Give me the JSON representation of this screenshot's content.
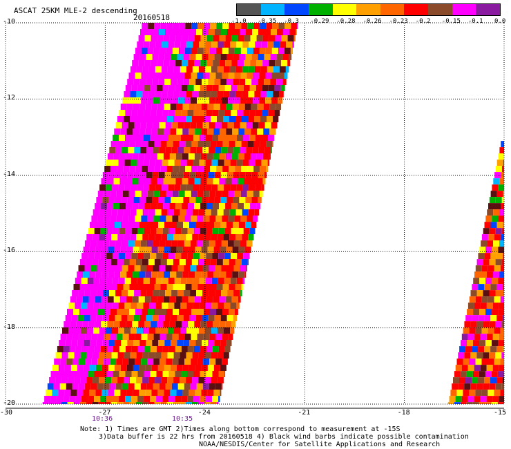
{
  "header": {
    "title": "ASCAT 25KM MLE-2 descending",
    "date": "20160518"
  },
  "legend": {
    "labels": [
      "-1.0",
      "-0.35",
      "-0.3",
      "-0.29",
      "-0.28",
      "-0.26",
      "-0.23",
      "-0.2",
      "-0.15",
      "-0.1",
      "0.0"
    ],
    "colors": [
      "#555555",
      "#00b4ff",
      "#0046ff",
      "#00b000",
      "#ffff00",
      "#ffa000",
      "#ff6600",
      "#ff0000",
      "#8b4a2a",
      "#ff00ff",
      "#8a1aa0"
    ]
  },
  "axes": {
    "x_ticks": [
      "-30",
      "-27",
      "-24",
      "-21",
      "-18",
      "-15"
    ],
    "y_ticks": [
      "-10",
      "-12",
      "-14",
      "-16",
      "-18",
      "-20"
    ],
    "times": [
      "10:36",
      "10:35"
    ]
  },
  "swaths": {
    "main": {
      "lat_top": -10,
      "lat_bottom": -20,
      "lon_left_top": -25.9,
      "lon_right_top": -21.2,
      "lon_left_bottom": -28.9,
      "lon_right_bottom": -23.6
    },
    "east": {
      "lat_top": -13.1,
      "lat_bottom": -20,
      "lon_left_top": -15.1,
      "lon_right_top": -15,
      "lon_left_bottom": -16.7,
      "lon_right_bottom": -15
    }
  },
  "notes": {
    "line1": "Note: 1) Times are GMT 2)Times along bottom correspond to measurement at -15S",
    "line2": "3)Data buffer is 22 hrs from 20160518 4) Black wind barbs indicate possible contamination",
    "line3": "NOAA/NESDIS/Center for Satellite Applications and Research"
  }
}
